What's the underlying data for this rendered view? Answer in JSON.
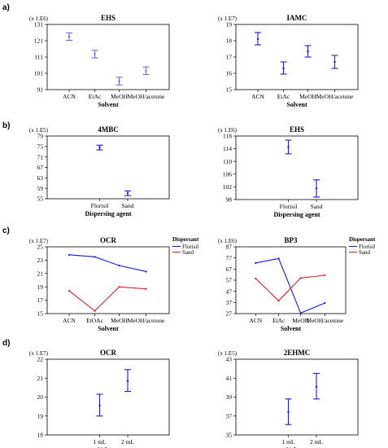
{
  "panel_labels": [
    "a)",
    "b)",
    "c)",
    "d)"
  ],
  "chart_data": [
    {
      "id": "a-left",
      "type": "interval",
      "panel": "a)",
      "title": "EHS",
      "scale": "(x 1.E6)",
      "xlabel": "Solvent",
      "ylabel": "",
      "categories": [
        "ACN",
        "EtAc",
        "MeOH",
        "MeOH/acetone"
      ],
      "ylim": [
        91,
        131
      ],
      "yticks": [
        91,
        101,
        111,
        121,
        131
      ],
      "means": [
        123.5,
        112.8,
        96.2,
        102.6
      ],
      "lower": [
        121.2,
        110.5,
        93.8,
        100.3
      ],
      "upper": [
        125.8,
        115.1,
        98.6,
        104.9
      ],
      "color": "#6a6ae8"
    },
    {
      "id": "a-right",
      "type": "interval",
      "panel": "a)",
      "title": "IAMC",
      "scale": "(x 1.E7)",
      "xlabel": "Solvent",
      "ylabel": "",
      "categories": [
        "ACN",
        "EtAc",
        "MeOH",
        "MeOH/acetone"
      ],
      "ylim": [
        15,
        19
      ],
      "yticks": [
        15,
        16,
        17,
        18,
        19
      ],
      "means": [
        18.1,
        16.3,
        17.35,
        16.7
      ],
      "lower": [
        17.75,
        15.95,
        17.0,
        16.3
      ],
      "upper": [
        18.5,
        16.7,
        17.7,
        17.1
      ],
      "color": "#1a1ae0"
    },
    {
      "id": "b-left",
      "type": "interval",
      "panel": "b)",
      "title": "4MBC",
      "scale": "(x 1.E5)",
      "xlabel": "Dispersing agent",
      "ylabel": "",
      "categories": [
        "Florisil",
        "Sand"
      ],
      "ylim": [
        55,
        79
      ],
      "yticks": [
        55,
        59,
        63,
        67,
        71,
        75,
        79
      ],
      "means": [
        74.6,
        57.1
      ],
      "lower": [
        73.7,
        56.2
      ],
      "upper": [
        75.5,
        58.0
      ],
      "color": "#1a1ae0"
    },
    {
      "id": "b-right",
      "type": "interval",
      "panel": "b)",
      "title": "EHS",
      "scale": "(x 1.E6)",
      "xlabel": "Dispersing agent",
      "ylabel": "",
      "categories": [
        "Florisil",
        "Sand"
      ],
      "ylim": [
        98,
        118
      ],
      "yticks": [
        98,
        102,
        106,
        110,
        114,
        118
      ],
      "means": [
        114.5,
        101.5
      ],
      "lower": [
        112.4,
        98.8
      ],
      "upper": [
        116.7,
        104.2
      ],
      "color": "#1a1ae0"
    },
    {
      "id": "c-left",
      "type": "line",
      "panel": "c)",
      "title": "OCR",
      "scale": "(x 1.E7)",
      "xlabel": "Solvent",
      "ylabel": "",
      "categories": [
        "ACN",
        "EtOAc",
        "MeOH",
        "MeOH/acetone"
      ],
      "ylim": [
        15,
        25
      ],
      "yticks": [
        15,
        17,
        19,
        21,
        23,
        25
      ],
      "legend_title": "Dispersant",
      "legend_position": "top-right",
      "series": [
        {
          "name": "Florisil",
          "values": [
            23.8,
            23.5,
            22.2,
            21.3
          ],
          "color": "#1a1ae0"
        },
        {
          "name": "Sand",
          "values": [
            18.4,
            15.4,
            19.0,
            18.7
          ],
          "color": "#e02020"
        }
      ]
    },
    {
      "id": "c-right",
      "type": "line",
      "panel": "c)",
      "title": "BP3",
      "scale": "(x 1.E6)",
      "xlabel": "Solvent",
      "ylabel": "",
      "categories": [
        "ACN",
        "EtAc",
        "MeOH",
        "MeOH/acetone"
      ],
      "ylim": [
        27,
        87
      ],
      "yticks": [
        27,
        37,
        47,
        57,
        67,
        77,
        87
      ],
      "legend_title": "Dispersant",
      "legend_position": "top-right",
      "series": [
        {
          "name": "Florisil",
          "values": [
            72.5,
            76.5,
            27.5,
            36.5
          ],
          "color": "#1a1ae0"
        },
        {
          "name": "Sand",
          "values": [
            58.5,
            38.5,
            59.0,
            61.5
          ],
          "color": "#e02020"
        }
      ]
    },
    {
      "id": "d-left",
      "type": "interval",
      "panel": "d)",
      "title": "OCR",
      "scale": "(x 1.E7)",
      "xlabel": "Volume",
      "ylabel": "",
      "categories": [
        "1 mL",
        "2 mL"
      ],
      "ylim": [
        18,
        22
      ],
      "yticks": [
        18,
        19,
        20,
        21,
        22
      ],
      "means": [
        19.55,
        20.85
      ],
      "lower": [
        19.0,
        20.3
      ],
      "upper": [
        20.15,
        21.45
      ],
      "color": "#1a1ae0"
    },
    {
      "id": "d-right",
      "type": "interval",
      "panel": "d)",
      "title": "2EHMC",
      "scale": "(x 1.E5)",
      "xlabel": "Volume",
      "ylabel": "",
      "categories": [
        "1 mL",
        "2 mL"
      ],
      "ylim": [
        35,
        43
      ],
      "yticks": [
        35,
        37,
        39,
        41,
        43
      ],
      "means": [
        37.4,
        40.1
      ],
      "lower": [
        36.1,
        38.8
      ],
      "upper": [
        38.8,
        41.5
      ],
      "color": "#1a1ae0"
    }
  ]
}
